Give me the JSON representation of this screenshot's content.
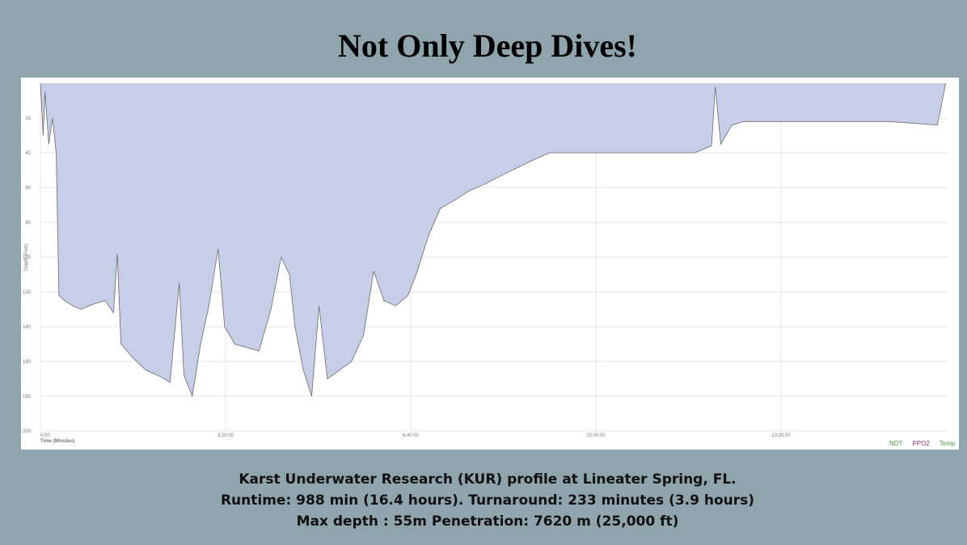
{
  "chart_data": {
    "type": "area",
    "title": "Not Only Deep Dives!",
    "x_label": "Time (Minutes)",
    "y_label": "Depth (Feet)",
    "x": [
      0,
      3,
      5,
      9,
      13,
      17,
      20,
      26,
      35,
      44,
      57,
      70,
      79,
      83,
      87,
      100,
      114,
      127,
      140,
      150,
      155,
      164,
      173,
      182,
      192,
      199,
      210,
      223,
      236,
      249,
      260,
      269,
      275,
      284,
      293,
      301,
      310,
      323,
      336,
      349,
      360,
      371,
      384,
      397,
      406,
      419,
      432,
      445,
      463,
      480,
      502,
      533,
      550,
      620,
      707,
      725,
      729,
      735,
      747,
      760,
      917,
      969,
      978
    ],
    "values": [
      0,
      30,
      5,
      35,
      20,
      40,
      122,
      125,
      128,
      130,
      127,
      125,
      132,
      98,
      150,
      158,
      165,
      168,
      172,
      115,
      168,
      180,
      150,
      128,
      95,
      140,
      150,
      152,
      154,
      130,
      100,
      110,
      140,
      165,
      180,
      128,
      170,
      165,
      160,
      145,
      108,
      125,
      128,
      122,
      110,
      88,
      72,
      68,
      62,
      58,
      52,
      44,
      40,
      40,
      40,
      36,
      2,
      35,
      24,
      22,
      22,
      24,
      0
    ],
    "color": "#c6cee8",
    "line_color": "#6b6b6b",
    "xlim": [
      0,
      980
    ],
    "xticks": [
      {
        "value": 0,
        "label": "0:00"
      },
      {
        "value": 200,
        "label": "3:20:00"
      },
      {
        "value": 400,
        "label": "6:40:00"
      },
      {
        "value": 600,
        "label": "10:00:00"
      },
      {
        "value": 800,
        "label": "13:20:00"
      }
    ],
    "ylim": [
      0,
      200
    ],
    "yticks": [
      20,
      40,
      60,
      80,
      100,
      120,
      140,
      160,
      180,
      200
    ],
    "y_inverted": true,
    "grid": true,
    "legend": [
      {
        "name": "NDT",
        "color": "#4f9a3c"
      },
      {
        "name": "PPO2",
        "color": "#8a3b7c"
      },
      {
        "name": "Temp",
        "color": "#4f9a3c"
      }
    ]
  },
  "caption": [
    "Karst Underwater Research (KUR) profile at Lineater Spring, FL.",
    "Runtime: 988 min (16.4 hours). Turnaround: 233 minutes (3.9 hours)",
    "Max depth : 55m Penetration: 7620 m (25,000 ft)"
  ]
}
